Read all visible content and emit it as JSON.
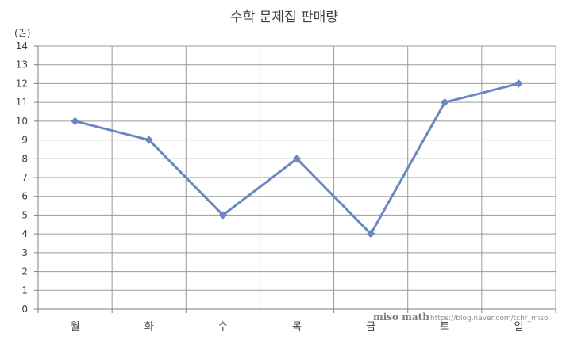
{
  "chart_data": {
    "type": "line",
    "title": "수학 문제집 판매량",
    "ylabel": "(권)",
    "xlabel": "",
    "categories": [
      "월",
      "화",
      "수",
      "목",
      "금",
      "토",
      "일"
    ],
    "series": [
      {
        "values": [
          10,
          9,
          5,
          8,
          4,
          11,
          12
        ],
        "color": "#6b87c2"
      }
    ],
    "ylim": [
      0,
      14
    ],
    "yticks": [
      0,
      1,
      2,
      3,
      4,
      5,
      6,
      7,
      8,
      9,
      10,
      11,
      12,
      13,
      14
    ],
    "grid": true,
    "marker": "diamond",
    "legend": "none"
  },
  "watermark": {
    "brand": "miso math",
    "url": "https://blog.naver.com/tchr_miso"
  },
  "colors": {
    "grid": "#9a9a9a",
    "text": "#404040",
    "line": "#6b87c2"
  }
}
